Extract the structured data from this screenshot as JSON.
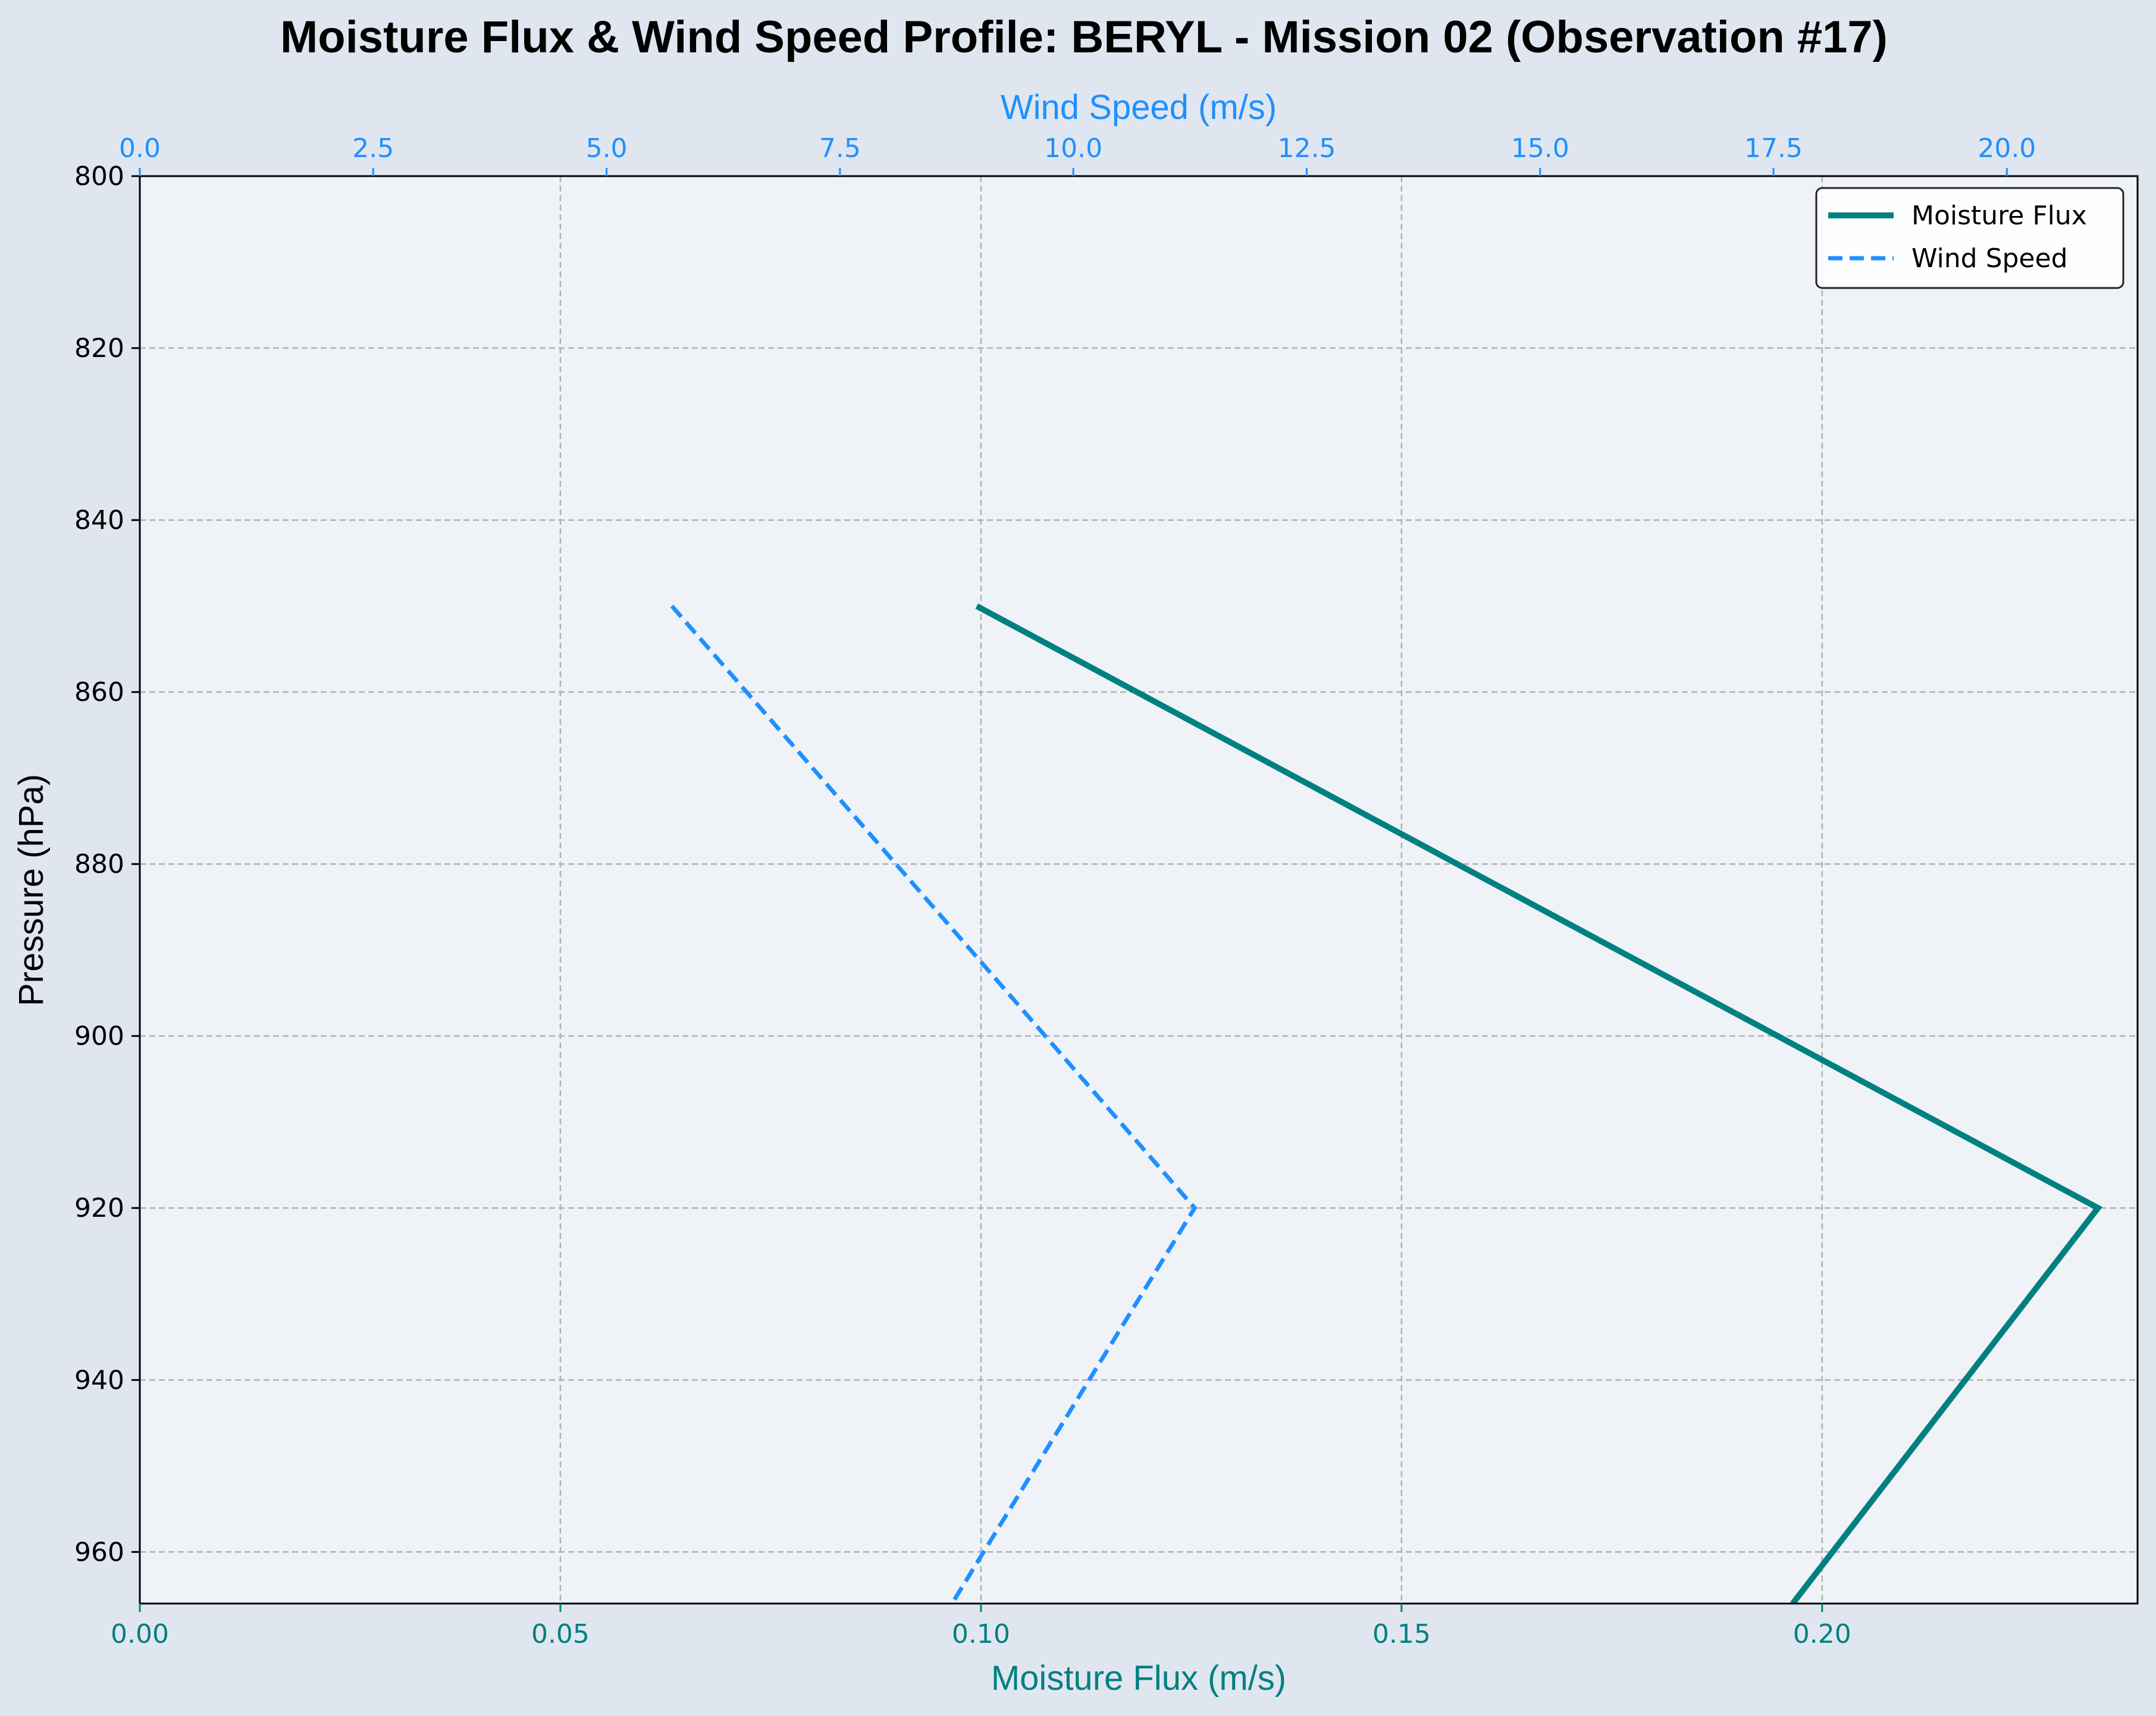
{
  "chart_data": {
    "type": "line",
    "title": "Moisture Flux & Wind Speed Profile: BERYL - Mission 02 (Observation #17)",
    "ylabel": "Pressure (hPa)",
    "ylim": [
      966,
      800
    ],
    "y_inverted": true,
    "yticks": [
      "800",
      "820",
      "840",
      "860",
      "880",
      "900",
      "920",
      "940",
      "960"
    ],
    "bottom_axis": {
      "label": "Moisture Flux (m/s)",
      "xlim": [
        0,
        0.2375
      ],
      "ticks": [
        "0.00",
        "0.05",
        "0.10",
        "0.15",
        "0.20"
      ],
      "color": "#008080"
    },
    "top_axis": {
      "label": "Wind Speed (m/s)",
      "xlim": [
        0,
        21.4
      ],
      "ticks": [
        "0.0",
        "2.5",
        "5.0",
        "7.5",
        "10.0",
        "12.5",
        "15.0",
        "17.5",
        "20.0"
      ],
      "color": "#1e90ff"
    },
    "grid": true,
    "legend_position": "top-right",
    "series": [
      {
        "name": "Moisture Flux",
        "axis": "bottom",
        "color": "#008080",
        "style": "solid",
        "points": [
          {
            "pressure": 850,
            "value": 0.0995
          },
          {
            "pressure": 920,
            "value": 0.2328
          },
          {
            "pressure": 966,
            "value": 0.1965
          }
        ]
      },
      {
        "name": "Wind Speed",
        "axis": "top",
        "color": "#1e90ff",
        "style": "dashed",
        "points": [
          {
            "pressure": 850,
            "value": 5.7
          },
          {
            "pressure": 920,
            "value": 11.3
          },
          {
            "pressure": 966,
            "value": 8.7
          }
        ]
      }
    ]
  }
}
